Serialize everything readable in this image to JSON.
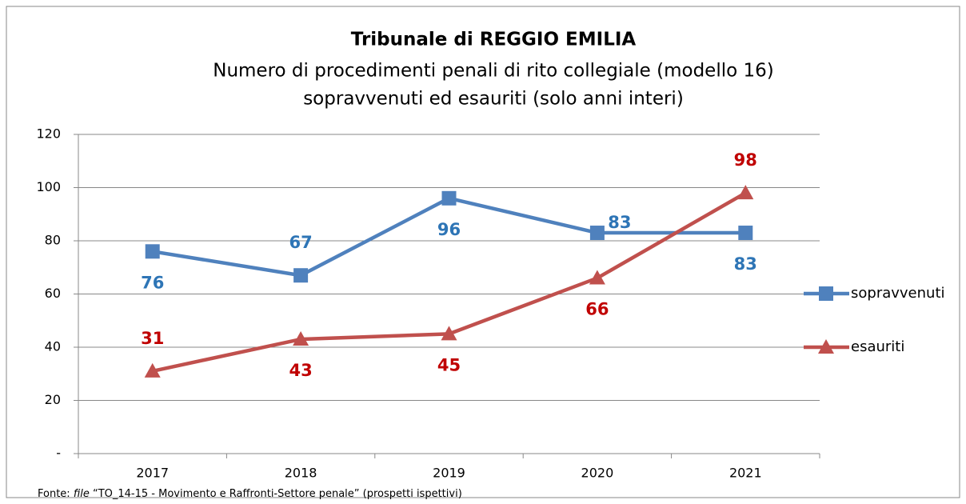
{
  "chart_data": {
    "type": "line",
    "title": "Tribunale di REGGIO EMILIA",
    "subtitle": [
      "Numero di procedimenti penali di rito collegiale (modello 16)",
      "sopravvenuti ed esauriti (solo anni interi)"
    ],
    "categories": [
      "2017",
      "2018",
      "2019",
      "2020",
      "2021"
    ],
    "series": [
      {
        "name": "sopravvenuti",
        "color": "#4f81bd",
        "label_color": "#2e75b6",
        "marker": "square",
        "values": [
          76,
          67,
          96,
          83,
          83
        ]
      },
      {
        "name": "esauriti",
        "color": "#c0504d",
        "label_color": "#c00000",
        "marker": "triangle",
        "values": [
          31,
          43,
          45,
          66,
          98
        ]
      }
    ],
    "ylim": [
      0,
      120
    ],
    "yticks": [
      {
        "value": 0,
        "label": "-"
      },
      20,
      40,
      60,
      80,
      100,
      120
    ],
    "grid": true,
    "legend": "right",
    "source": [
      "Fonte: ",
      "file",
      " “TO_14-15 - Movimento e Raffronti-Settore penale” (prospetti ispettivi)"
    ]
  }
}
